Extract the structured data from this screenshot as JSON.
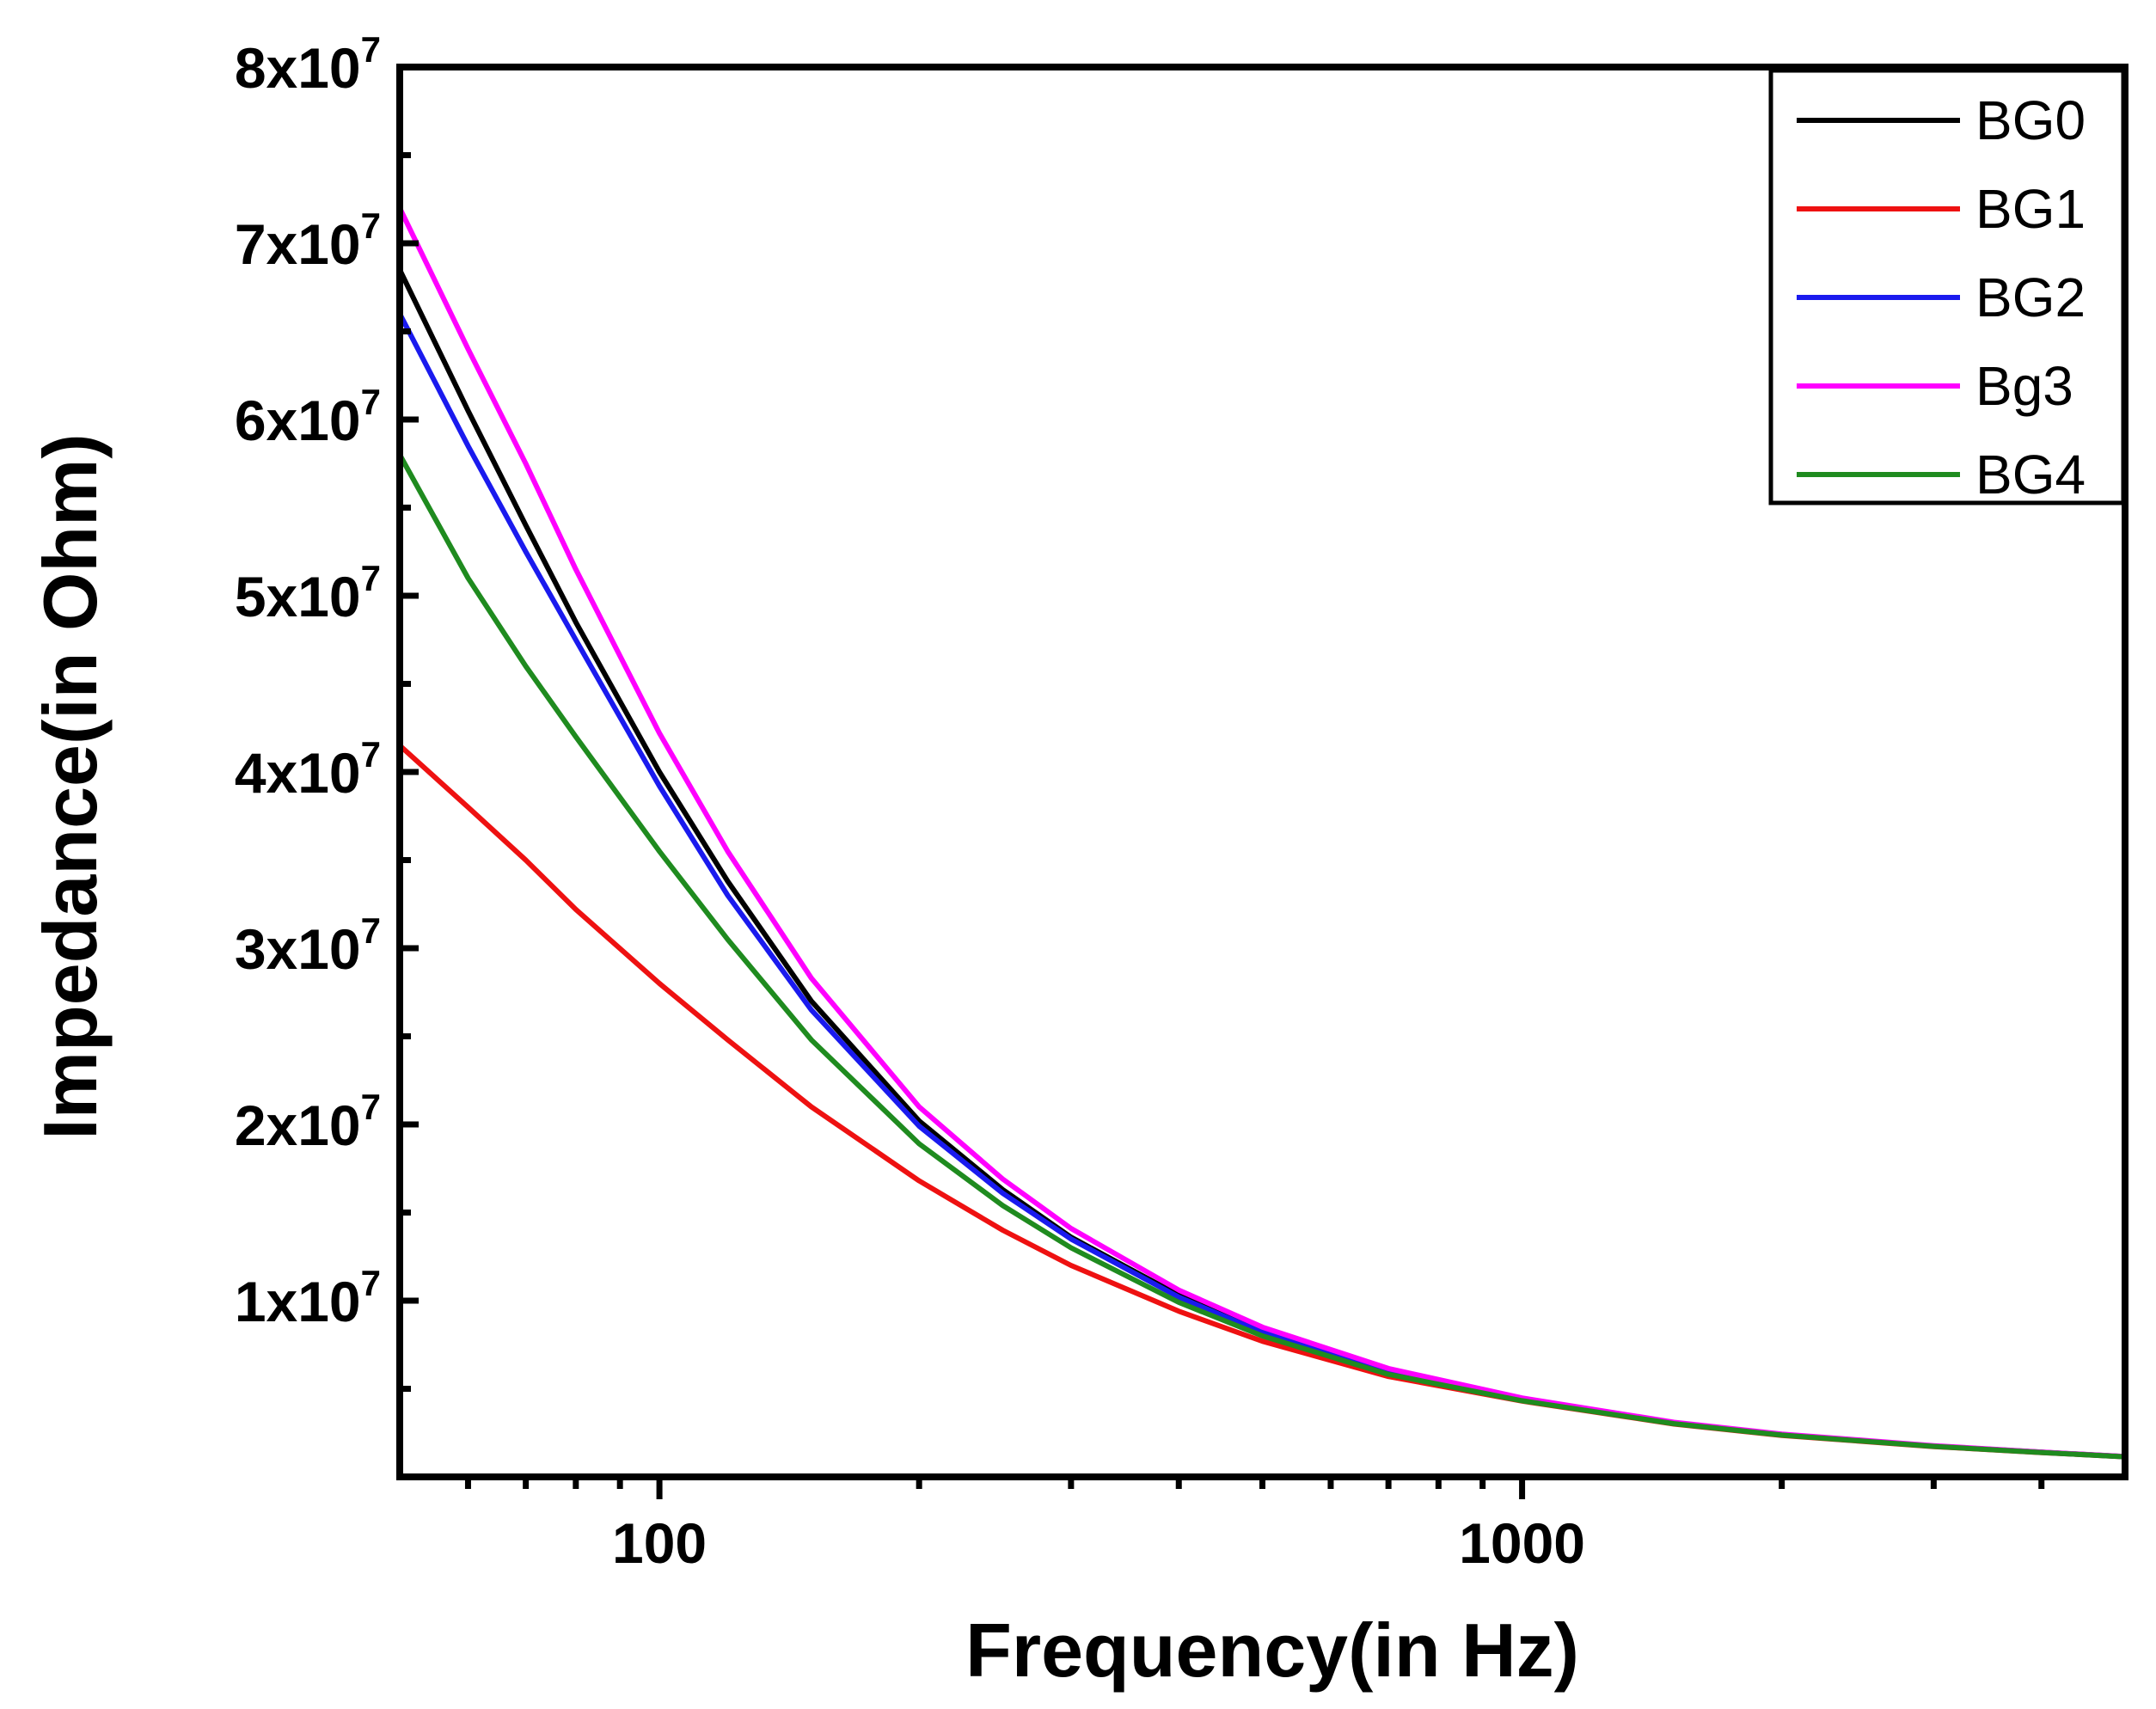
{
  "chart_data": {
    "type": "line",
    "title": "",
    "xlabel": "Frequency(in Hz)",
    "ylabel": "Impedance(in Ohm)",
    "xscale": "log",
    "xlim": [
      50,
      5000
    ],
    "ylim": [
      0,
      80000000
    ],
    "grid": false,
    "legend_position": "top-right",
    "x_ticks": [
      {
        "value": 100,
        "label": "100"
      },
      {
        "value": 1000,
        "label": "1000"
      }
    ],
    "y_ticks": [
      {
        "value": 10000000,
        "mantissa": "1x10",
        "exp": "7"
      },
      {
        "value": 20000000,
        "mantissa": "2x10",
        "exp": "7"
      },
      {
        "value": 30000000,
        "mantissa": "3x10",
        "exp": "7"
      },
      {
        "value": 40000000,
        "mantissa": "4x10",
        "exp": "7"
      },
      {
        "value": 50000000,
        "mantissa": "5x10",
        "exp": "7"
      },
      {
        "value": 60000000,
        "mantissa": "6x10",
        "exp": "7"
      },
      {
        "value": 70000000,
        "mantissa": "7x10",
        "exp": "7"
      },
      {
        "value": 80000000,
        "mantissa": "8x10",
        "exp": "7"
      }
    ],
    "x": [
      50,
      60,
      70,
      80,
      100,
      120,
      150,
      200,
      250,
      300,
      400,
      500,
      700,
      1000,
      1500,
      2000,
      3000,
      4000,
      5000
    ],
    "series": [
      {
        "name": "BG0",
        "color": "#000000",
        "values": [
          68500000,
          60500000,
          54000000,
          48500000,
          40000000,
          33800000,
          27000000,
          20200000,
          16300000,
          13600000,
          10300000,
          8300000,
          6000000,
          4400000,
          3050000,
          2400000,
          1750000,
          1400000,
          1150000
        ]
      },
      {
        "name": "BG1",
        "color": "#ee1111",
        "values": [
          41500000,
          38000000,
          35000000,
          32200000,
          28000000,
          24800000,
          21000000,
          16800000,
          14000000,
          12000000,
          9400000,
          7700000,
          5700000,
          4300000,
          3000000,
          2350000,
          1720000,
          1380000,
          1140000
        ]
      },
      {
        "name": "BG2",
        "color": "#1a1aee",
        "values": [
          66000000,
          58500000,
          52500000,
          47500000,
          39200000,
          33000000,
          26500000,
          19900000,
          16100000,
          13500000,
          10200000,
          8200000,
          5950000,
          4380000,
          3040000,
          2390000,
          1745000,
          1395000,
          1148000
        ]
      },
      {
        "name": "Bg3",
        "color": "#ff00ff",
        "values": [
          72000000,
          64000000,
          57500000,
          51500000,
          42200000,
          35500000,
          28300000,
          21000000,
          16900000,
          14100000,
          10600000,
          8500000,
          6150000,
          4480000,
          3100000,
          2430000,
          1770000,
          1410000,
          1155000
        ]
      },
      {
        "name": "BG4",
        "color": "#1f8b1f",
        "values": [
          58000000,
          51000000,
          46000000,
          42000000,
          35500000,
          30500000,
          24800000,
          18900000,
          15400000,
          13000000,
          9900000,
          8000000,
          5820000,
          4320000,
          3020000,
          2370000,
          1730000,
          1385000,
          1142000
        ]
      }
    ]
  }
}
